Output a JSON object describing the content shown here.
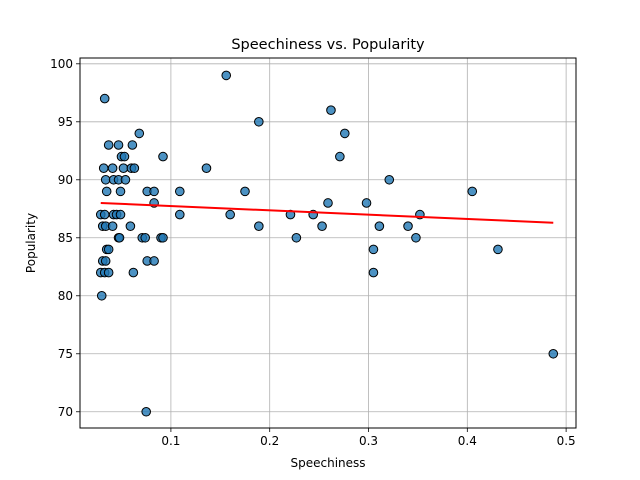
{
  "chart_data": {
    "type": "scatter",
    "title": "Speechiness vs. Popularity",
    "xlabel": "Speechiness",
    "ylabel": "Popularity",
    "xlim": [
      0.008,
      0.51
    ],
    "ylim": [
      68.6,
      100.5
    ],
    "x_ticks": [
      0.1,
      0.2,
      0.3,
      0.4,
      0.5
    ],
    "x_tick_labels": [
      "0.1",
      "0.2",
      "0.3",
      "0.4",
      "0.5"
    ],
    "y_ticks": [
      70,
      75,
      80,
      85,
      90,
      95,
      100
    ],
    "y_tick_labels": [
      "70",
      "75",
      "80",
      "85",
      "90",
      "95",
      "100"
    ],
    "grid": true,
    "legend": "none",
    "point_color": "#1f77b4",
    "point_edge_color": "#000000",
    "trend_color": "#ff0000",
    "points": [
      [
        0.156,
        99
      ],
      [
        0.033,
        97
      ],
      [
        0.262,
        96
      ],
      [
        0.189,
        95
      ],
      [
        0.276,
        94
      ],
      [
        0.068,
        94
      ],
      [
        0.037,
        93
      ],
      [
        0.047,
        93
      ],
      [
        0.061,
        93
      ],
      [
        0.05,
        92
      ],
      [
        0.053,
        92
      ],
      [
        0.092,
        92
      ],
      [
        0.271,
        92
      ],
      [
        0.032,
        91
      ],
      [
        0.041,
        91
      ],
      [
        0.052,
        91
      ],
      [
        0.06,
        91
      ],
      [
        0.063,
        91
      ],
      [
        0.136,
        91
      ],
      [
        0.034,
        90
      ],
      [
        0.042,
        90
      ],
      [
        0.047,
        90
      ],
      [
        0.054,
        90
      ],
      [
        0.321,
        90
      ],
      [
        0.035,
        89
      ],
      [
        0.049,
        89
      ],
      [
        0.076,
        89
      ],
      [
        0.083,
        89
      ],
      [
        0.109,
        89
      ],
      [
        0.175,
        89
      ],
      [
        0.405,
        89
      ],
      [
        0.083,
        88
      ],
      [
        0.259,
        88
      ],
      [
        0.298,
        88
      ],
      [
        0.029,
        87
      ],
      [
        0.033,
        87
      ],
      [
        0.042,
        87
      ],
      [
        0.045,
        87
      ],
      [
        0.049,
        87
      ],
      [
        0.109,
        87
      ],
      [
        0.16,
        87
      ],
      [
        0.221,
        87
      ],
      [
        0.244,
        87
      ],
      [
        0.352,
        87
      ],
      [
        0.031,
        86
      ],
      [
        0.034,
        86
      ],
      [
        0.041,
        86
      ],
      [
        0.059,
        86
      ],
      [
        0.189,
        86
      ],
      [
        0.253,
        86
      ],
      [
        0.311,
        86
      ],
      [
        0.34,
        86
      ],
      [
        0.047,
        85
      ],
      [
        0.048,
        85
      ],
      [
        0.071,
        85
      ],
      [
        0.074,
        85
      ],
      [
        0.09,
        85
      ],
      [
        0.092,
        85
      ],
      [
        0.227,
        85
      ],
      [
        0.348,
        85
      ],
      [
        0.035,
        84
      ],
      [
        0.037,
        84
      ],
      [
        0.305,
        84
      ],
      [
        0.431,
        84
      ],
      [
        0.031,
        83
      ],
      [
        0.034,
        83
      ],
      [
        0.076,
        83
      ],
      [
        0.083,
        83
      ],
      [
        0.029,
        82
      ],
      [
        0.033,
        82
      ],
      [
        0.037,
        82
      ],
      [
        0.062,
        82
      ],
      [
        0.305,
        82
      ],
      [
        0.03,
        80
      ],
      [
        0.487,
        75
      ],
      [
        0.075,
        70
      ]
    ],
    "trend_line": {
      "x": [
        0.029,
        0.487
      ],
      "y": [
        88.0,
        86.3
      ]
    }
  }
}
